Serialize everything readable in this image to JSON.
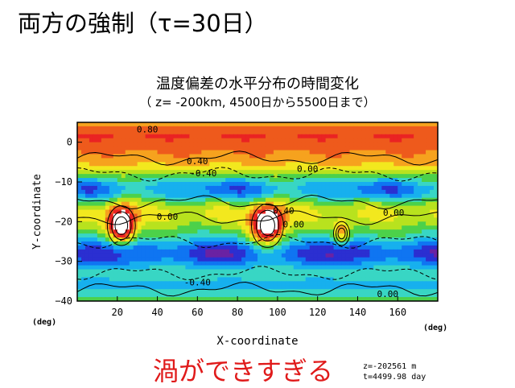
{
  "slide": {
    "title": "両方の強制（τ=30日）",
    "caption": "渦ができすぎる",
    "info_z": "z=-202561 m",
    "info_t": "t=4499.98 day"
  },
  "chart_data": {
    "type": "heatmap",
    "title": "温度偏差の水平分布の時間変化",
    "subtitle": "（ z= -200km, 4500日から5500日まで）",
    "xlabel": "X-coordinate",
    "ylabel": "Y-coordinate",
    "x_unit": "(deg)",
    "y_unit": "(deg)",
    "xlim": [
      0,
      180
    ],
    "ylim": [
      -40,
      5
    ],
    "x_ticks": [
      20,
      40,
      60,
      80,
      100,
      120,
      140,
      160
    ],
    "y_ticks": [
      0,
      -10,
      -20,
      -30,
      -40
    ],
    "contour_levels": [
      -1.0,
      -0.8,
      -0.6,
      -0.4,
      -0.2,
      0.0,
      0.2,
      0.4,
      0.6,
      0.8,
      1.0
    ],
    "colors": [
      "#6a22a3",
      "#2b2fd1",
      "#0f75f2",
      "#17b0ee",
      "#38d6c4",
      "#4cd14a",
      "#b8e21e",
      "#f2e81e",
      "#f6a21e",
      "#ee5a1c",
      "#ea2323"
    ],
    "contour_labels": [
      {
        "x": 35,
        "y": 2.5,
        "text": "0.80"
      },
      {
        "x": 60,
        "y": -5.5,
        "text": "0.40"
      },
      {
        "x": 63,
        "y": -8.6,
        "text": "-0.40"
      },
      {
        "x": 115,
        "y": -7.5,
        "text": "0.00"
      },
      {
        "x": 45,
        "y": -19.5,
        "text": "0.00"
      },
      {
        "x": 103,
        "y": -18,
        "text": "0.40"
      },
      {
        "x": 108,
        "y": -21.5,
        "text": "0.00"
      },
      {
        "x": 158,
        "y": -18.5,
        "text": "0.00"
      },
      {
        "x": 60,
        "y": -36,
        "text": "-0.40"
      },
      {
        "x": 155,
        "y": -39,
        "text": "0.00"
      }
    ]
  }
}
